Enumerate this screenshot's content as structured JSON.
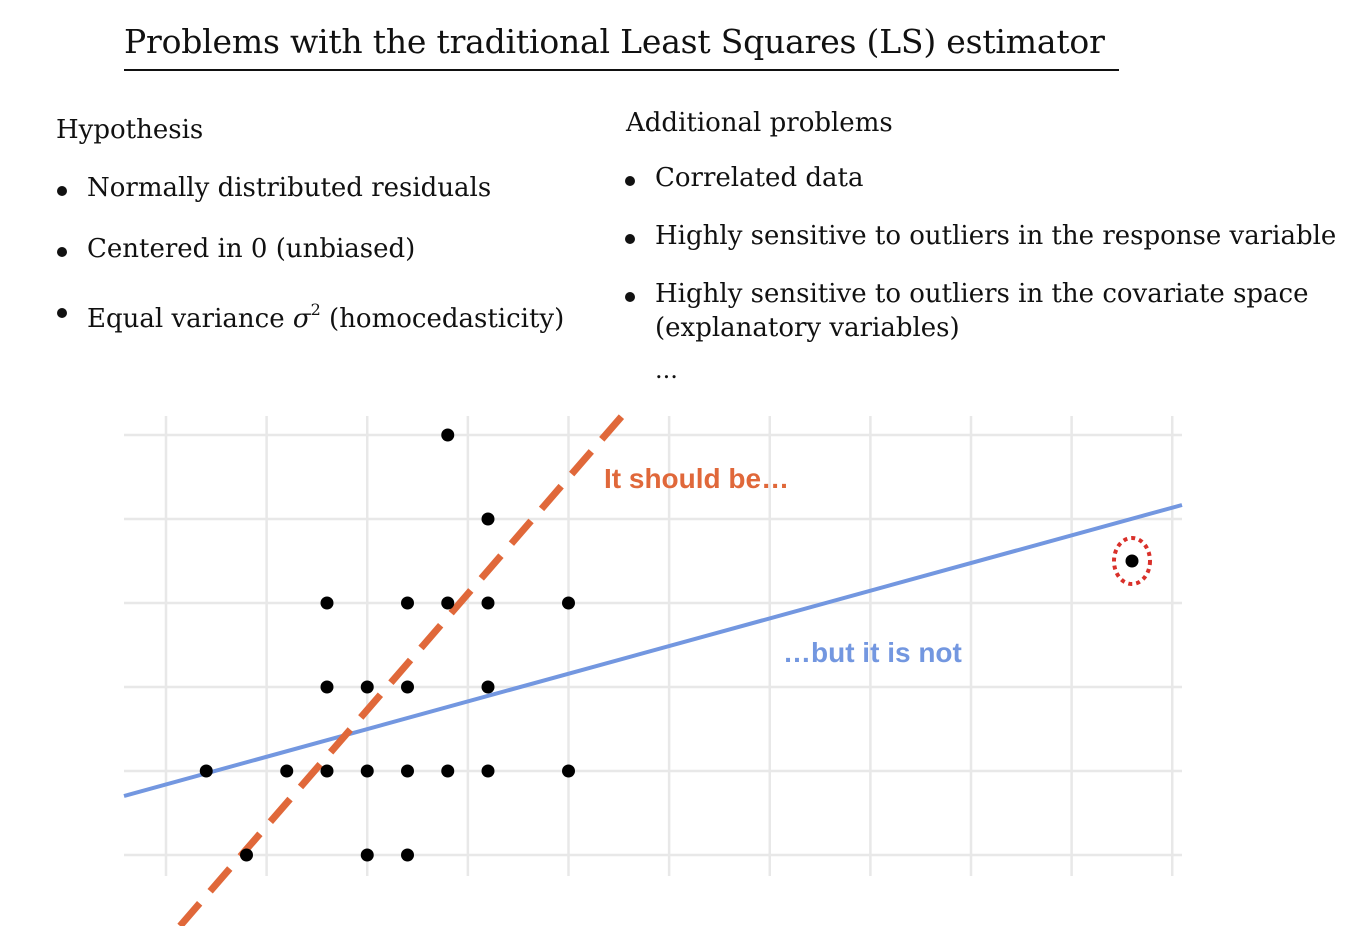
{
  "title": "Problems with the traditional Least Squares (LS) estimator",
  "left": {
    "heading": "Hypothesis",
    "items": [
      {
        "text": "Normally distributed residuals"
      },
      {
        "text_before": "Equal variance ",
        "symbol": "σ",
        "superscript": "2",
        "text_after": " (homocedasticity)"
      }
    ],
    "item_centered": "Centered in 0 (unbiased)"
  },
  "right": {
    "heading": "Additional problems",
    "items": [
      {
        "text": "Correlated data"
      },
      {
        "text": "Highly sensitive to outliers in the response variable"
      },
      {
        "line1": "Highly sensitive to outliers in the covariate space",
        "line2": "(explanatory variables)"
      }
    ],
    "ellipsis": "..."
  },
  "plot": {
    "annotation_should": "It should be…",
    "annotation_not": "…but it is not",
    "colors": {
      "should_line": "#E0683A",
      "fitted_line": "#7397E0",
      "outlier_ring": "#D9302A",
      "points": "#000000",
      "grid": "#E8E8E8"
    },
    "points": [
      [
        1,
        1
      ],
      [
        3,
        1
      ],
      [
        4,
        1
      ],
      [
        5,
        1
      ],
      [
        6,
        1
      ],
      [
        7,
        1
      ],
      [
        8,
        1
      ],
      [
        10,
        1
      ],
      [
        2,
        0
      ],
      [
        5,
        0
      ],
      [
        6,
        0
      ],
      [
        4,
        2
      ],
      [
        5,
        2
      ],
      [
        6,
        2
      ],
      [
        8,
        2
      ],
      [
        4,
        3
      ],
      [
        6,
        3
      ],
      [
        7,
        3
      ],
      [
        8,
        3
      ],
      [
        10,
        3
      ],
      [
        8,
        4
      ],
      [
        7,
        5
      ],
      [
        24,
        3.5
      ]
    ],
    "outlier": [
      24,
      3.5
    ]
  }
}
